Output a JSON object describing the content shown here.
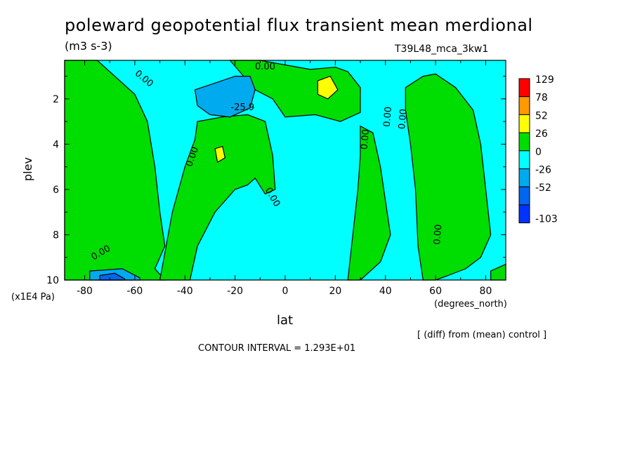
{
  "title": "poleward geopotential flux transient mean merdional",
  "units": "(m3 s-3)",
  "run_label": "T39L48_mca_3kw1",
  "note": "[ (diff) from (mean) control ]",
  "contour_interval_label": "CONTOUR INTERVAL = 1.293E+01",
  "chart_data": {
    "type": "heatmap",
    "xlabel": "lat",
    "x_unit": "(degrees_north)",
    "ylabel": "plev",
    "y_unit": "(x1E4 Pa)",
    "xlim": [
      -88,
      88
    ],
    "ylim": [
      10,
      0.3
    ],
    "x_ticks": [
      -80,
      -60,
      -40,
      -20,
      0,
      20,
      40,
      60,
      80
    ],
    "x_tick_labels": [
      "-80",
      "-60",
      "-40",
      "-20",
      "0",
      "20",
      "40",
      "60",
      "80"
    ],
    "y_ticks": [
      2,
      4,
      6,
      8,
      10
    ],
    "y_tick_labels": [
      "2",
      "4",
      "6",
      "8",
      "10"
    ],
    "legend": {
      "placement": "right",
      "labels": [
        "129",
        "78",
        "52",
        "26",
        "0",
        "-26",
        "-52",
        "-103"
      ],
      "colors": [
        "#ff0000",
        "#ff9900",
        "#ffff00",
        "#00dd00",
        "#00ffff",
        "#00aaee",
        "#0066ee",
        "#0033ff"
      ]
    },
    "regions": [
      {
        "level": "0_to_26",
        "color": "#00dd00",
        "polygons": [
          [
            [
              -88,
              0.3
            ],
            [
              -75,
              0.3
            ],
            [
              -70,
              0.8
            ],
            [
              -60,
              1.8
            ],
            [
              -55,
              3
            ],
            [
              -52,
              5
            ],
            [
              -50,
              7
            ],
            [
              -48,
              8.5
            ],
            [
              -52,
              9.5
            ],
            [
              -48,
              10
            ],
            [
              -88,
              10
            ]
          ],
          [
            [
              -35,
              3
            ],
            [
              -25,
              2.8
            ],
            [
              -15,
              2.7
            ],
            [
              -8,
              3
            ],
            [
              -5,
              4.5
            ],
            [
              -4,
              6
            ],
            [
              -8,
              6.2
            ],
            [
              -12,
              5.5
            ],
            [
              -15,
              5.8
            ],
            [
              -20,
              6
            ],
            [
              -28,
              7
            ],
            [
              -35,
              8.5
            ],
            [
              -38,
              10
            ],
            [
              -50,
              10
            ],
            [
              -45,
              7
            ],
            [
              -40,
              5
            ],
            [
              -36,
              3.8
            ]
          ],
          [
            [
              -22,
              0.3
            ],
            [
              -10,
              0.3
            ],
            [
              0,
              0.5
            ],
            [
              10,
              0.7
            ],
            [
              20,
              0.6
            ],
            [
              25,
              0.8
            ],
            [
              30,
              1.5
            ],
            [
              30,
              2.6
            ],
            [
              22,
              3
            ],
            [
              12,
              2.7
            ],
            [
              0,
              2.8
            ],
            [
              -5,
              2
            ],
            [
              -12,
              1.6
            ]
          ],
          [
            [
              30,
              3.2
            ],
            [
              35,
              3.5
            ],
            [
              38,
              5
            ],
            [
              40,
              6.5
            ],
            [
              42,
              8
            ],
            [
              38,
              9.2
            ],
            [
              30,
              10
            ],
            [
              25,
              10
            ],
            [
              27,
              8
            ],
            [
              29,
              6
            ],
            [
              30,
              4.5
            ]
          ],
          [
            [
              48,
              1.5
            ],
            [
              55,
              1
            ],
            [
              60,
              0.9
            ],
            [
              68,
              1.5
            ],
            [
              75,
              2.5
            ],
            [
              78,
              4
            ],
            [
              80,
              6
            ],
            [
              82,
              8
            ],
            [
              78,
              9
            ],
            [
              72,
              9.5
            ],
            [
              65,
              9.8
            ],
            [
              60,
              10
            ],
            [
              55,
              10
            ],
            [
              53,
              8.5
            ],
            [
              52,
              6
            ],
            [
              50,
              4
            ],
            [
              48,
              2.5
            ]
          ],
          [
            [
              82,
              9.6
            ],
            [
              88,
              9.3
            ],
            [
              88,
              10
            ],
            [
              82,
              10
            ]
          ]
        ]
      },
      {
        "level": "26_to_52",
        "color": "#ffff00",
        "polygons": [
          [
            [
              13,
              1.2
            ],
            [
              18,
              1
            ],
            [
              21,
              1.6
            ],
            [
              17,
              2
            ],
            [
              13,
              1.8
            ]
          ],
          [
            [
              -28,
              4.2
            ],
            [
              -25,
              4.1
            ],
            [
              -24,
              4.6
            ],
            [
              -27,
              4.8
            ]
          ]
        ]
      },
      {
        "level": "-26_to_-52",
        "color": "#00aaee",
        "polygons": [
          [
            [
              -36,
              1.6
            ],
            [
              -28,
              1.3
            ],
            [
              -20,
              1
            ],
            [
              -14,
              1
            ],
            [
              -12,
              1.6
            ],
            [
              -14,
              2.4
            ],
            [
              -22,
              2.8
            ],
            [
              -30,
              2.7
            ],
            [
              -35,
              2.3
            ]
          ],
          [
            [
              -78,
              9.6
            ],
            [
              -65,
              9.5
            ],
            [
              -58,
              9.9
            ],
            [
              -58,
              10
            ],
            [
              -78,
              10
            ]
          ]
        ]
      },
      {
        "level": "-52_to_-103",
        "color": "#0066ee",
        "polygons": [
          [
            [
              -74,
              9.8
            ],
            [
              -68,
              9.7
            ],
            [
              -64,
              9.95
            ],
            [
              -64,
              10
            ],
            [
              -74,
              10
            ]
          ]
        ]
      }
    ],
    "contour_labels": [
      {
        "text": "0.00",
        "x": -57,
        "y": 1.2,
        "angle": 40
      },
      {
        "text": "0.00",
        "x": -8,
        "y": 0.7,
        "angle": 0
      },
      {
        "text": "-25.9",
        "x": -17,
        "y": 2.5,
        "angle": 0
      },
      {
        "text": "0.00",
        "x": -36,
        "y": 4.6,
        "angle": -70
      },
      {
        "text": "0.00",
        "x": -6,
        "y": 6.4,
        "angle": 60
      },
      {
        "text": "0.00",
        "x": 33,
        "y": 3.8,
        "angle": -85
      },
      {
        "text": "0.00",
        "x": 42,
        "y": 2.8,
        "angle": -85
      },
      {
        "text": "0.00",
        "x": 48,
        "y": 2.9,
        "angle": -85
      },
      {
        "text": "0.00",
        "x": 62,
        "y": 8,
        "angle": -85
      },
      {
        "text": "0.00",
        "x": -73,
        "y": 8.9,
        "angle": -30
      }
    ]
  }
}
